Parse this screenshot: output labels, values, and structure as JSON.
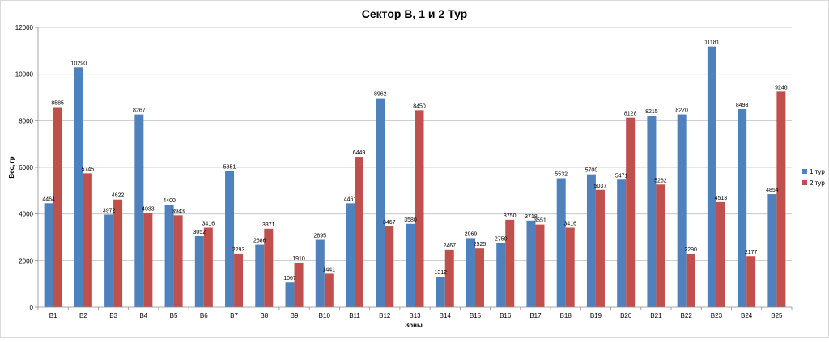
{
  "chart_data": {
    "type": "bar",
    "title": "Сектор B, 1 и 2 Тур",
    "xlabel": "Зоны",
    "ylabel": "Вес, гр",
    "ylim": [
      0,
      12000
    ],
    "yticks": [
      0,
      2000,
      4000,
      6000,
      8000,
      10000,
      12000
    ],
    "grid": true,
    "legend_position": "right",
    "categories": [
      "B1",
      "B2",
      "B3",
      "B4",
      "B5",
      "B6",
      "B7",
      "B8",
      "B9",
      "B10",
      "B11",
      "B12",
      "B13",
      "B14",
      "B15",
      "B16",
      "B17",
      "B18",
      "B19",
      "B20",
      "B21",
      "B22",
      "B23",
      "B24",
      "B25"
    ],
    "series": [
      {
        "name": "1 тур",
        "color": "#4F81BD",
        "values": [
          4464,
          10290,
          3972,
          8267,
          4400,
          3052,
          5851,
          2686,
          1067,
          2895,
          4461,
          8962,
          3580,
          1312,
          2969,
          2750,
          3718,
          5532,
          5700,
          5471,
          8215,
          8270,
          11181,
          8498,
          4854
        ]
      },
      {
        "name": "2 тур",
        "color": "#C0504D",
        "values": [
          8585,
          5745,
          4622,
          4033,
          3943,
          3416,
          2293,
          3371,
          1910,
          1441,
          6449,
          3467,
          8450,
          2467,
          2525,
          3750,
          3551,
          3416,
          5037,
          8128,
          5262,
          2290,
          4513,
          2177,
          9248
        ]
      }
    ]
  }
}
